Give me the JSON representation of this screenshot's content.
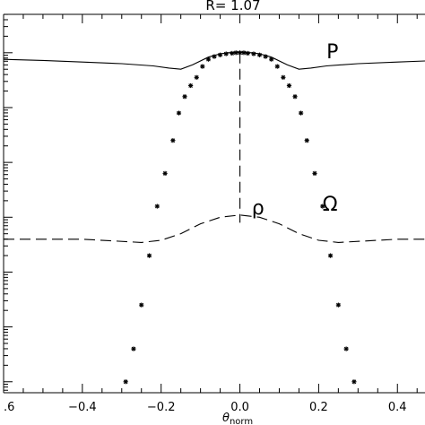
{
  "chart_data": {
    "type": "line",
    "title": "R= 1.07",
    "xlabel": "θ",
    "xlabel_subscript": "norm",
    "ylabel": "",
    "xlim": [
      -0.6,
      0.47
    ],
    "ylim_log10": [
      -6.2,
      0.7
    ],
    "y_scale": "log",
    "grid": false,
    "x_tick_labels": [
      {
        "value": -0.6,
        "label": ".6"
      },
      {
        "value": -0.4,
        "label": "−0.4"
      },
      {
        "value": -0.2,
        "label": "−0.2"
      },
      {
        "value": 0.0,
        "label": "0.0"
      },
      {
        "value": 0.2,
        "label": "0.2"
      },
      {
        "value": 0.4,
        "label": "0.4"
      }
    ],
    "y_major_ticks_log10": [
      0,
      -1,
      -2,
      -3,
      -4,
      -5
    ],
    "series": [
      {
        "name": "P",
        "style": "solid",
        "x": [
          -0.6,
          -0.5,
          -0.4,
          -0.3,
          -0.22,
          -0.18,
          -0.15,
          -0.12,
          -0.08,
          -0.05,
          -0.03,
          0.0,
          0.03,
          0.05,
          0.08,
          0.12,
          0.15,
          0.18,
          0.22,
          0.3,
          0.4,
          0.47
        ],
        "y_log10": [
          -0.12,
          -0.14,
          -0.17,
          -0.2,
          -0.24,
          -0.28,
          -0.3,
          -0.22,
          -0.08,
          -0.02,
          0.0,
          0.01,
          0.0,
          -0.02,
          -0.08,
          -0.22,
          -0.3,
          -0.28,
          -0.24,
          -0.2,
          -0.17,
          -0.15
        ]
      },
      {
        "name": "ρ",
        "style": "dashed",
        "x": [
          -0.6,
          -0.4,
          -0.25,
          -0.2,
          -0.15,
          -0.1,
          -0.05,
          0.0,
          0.05,
          0.1,
          0.15,
          0.2,
          0.25,
          0.4,
          0.47
        ],
        "y_log10": [
          -3.4,
          -3.4,
          -3.46,
          -3.42,
          -3.3,
          -3.12,
          -3.0,
          -2.96,
          -3.0,
          -3.12,
          -3.3,
          -3.42,
          -3.46,
          -3.4,
          -3.4
        ]
      },
      {
        "name": "",
        "style": "dashed",
        "x": [
          0.0,
          0.0
        ],
        "y_log10": [
          0.0,
          -3.1
        ]
      },
      {
        "name": "Ω",
        "style": "markers",
        "marker": "asterisk",
        "x": [
          -0.29,
          -0.27,
          -0.25,
          -0.23,
          -0.21,
          -0.19,
          -0.17,
          -0.155,
          -0.14,
          -0.125,
          -0.11,
          -0.095,
          -0.08,
          -0.065,
          -0.05,
          -0.035,
          -0.02,
          -0.01,
          0.0,
          0.01,
          0.02,
          0.035,
          0.05,
          0.065,
          0.08,
          0.095,
          0.11,
          0.125,
          0.14,
          0.155,
          0.17,
          0.19,
          0.21,
          0.23,
          0.25,
          0.27,
          0.29
        ],
        "y_log10": [
          -6.0,
          -5.4,
          -4.6,
          -3.7,
          -2.8,
          -2.2,
          -1.6,
          -1.1,
          -0.8,
          -0.6,
          -0.45,
          -0.25,
          -0.12,
          -0.07,
          -0.04,
          -0.02,
          -0.01,
          0.0,
          0.0,
          0.0,
          -0.01,
          -0.02,
          -0.04,
          -0.07,
          -0.12,
          -0.25,
          -0.45,
          -0.6,
          -0.8,
          -1.1,
          -1.6,
          -2.2,
          -2.8,
          -3.7,
          -4.6,
          -5.4,
          -6.0
        ]
      }
    ],
    "annotations": [
      {
        "text": "P",
        "x": 0.22,
        "y_log10": -0.1
      },
      {
        "text": "ρ",
        "x": 0.03,
        "y_log10": -2.95
      },
      {
        "text": "Ω",
        "x": 0.21,
        "y_log10": -2.88
      }
    ]
  }
}
